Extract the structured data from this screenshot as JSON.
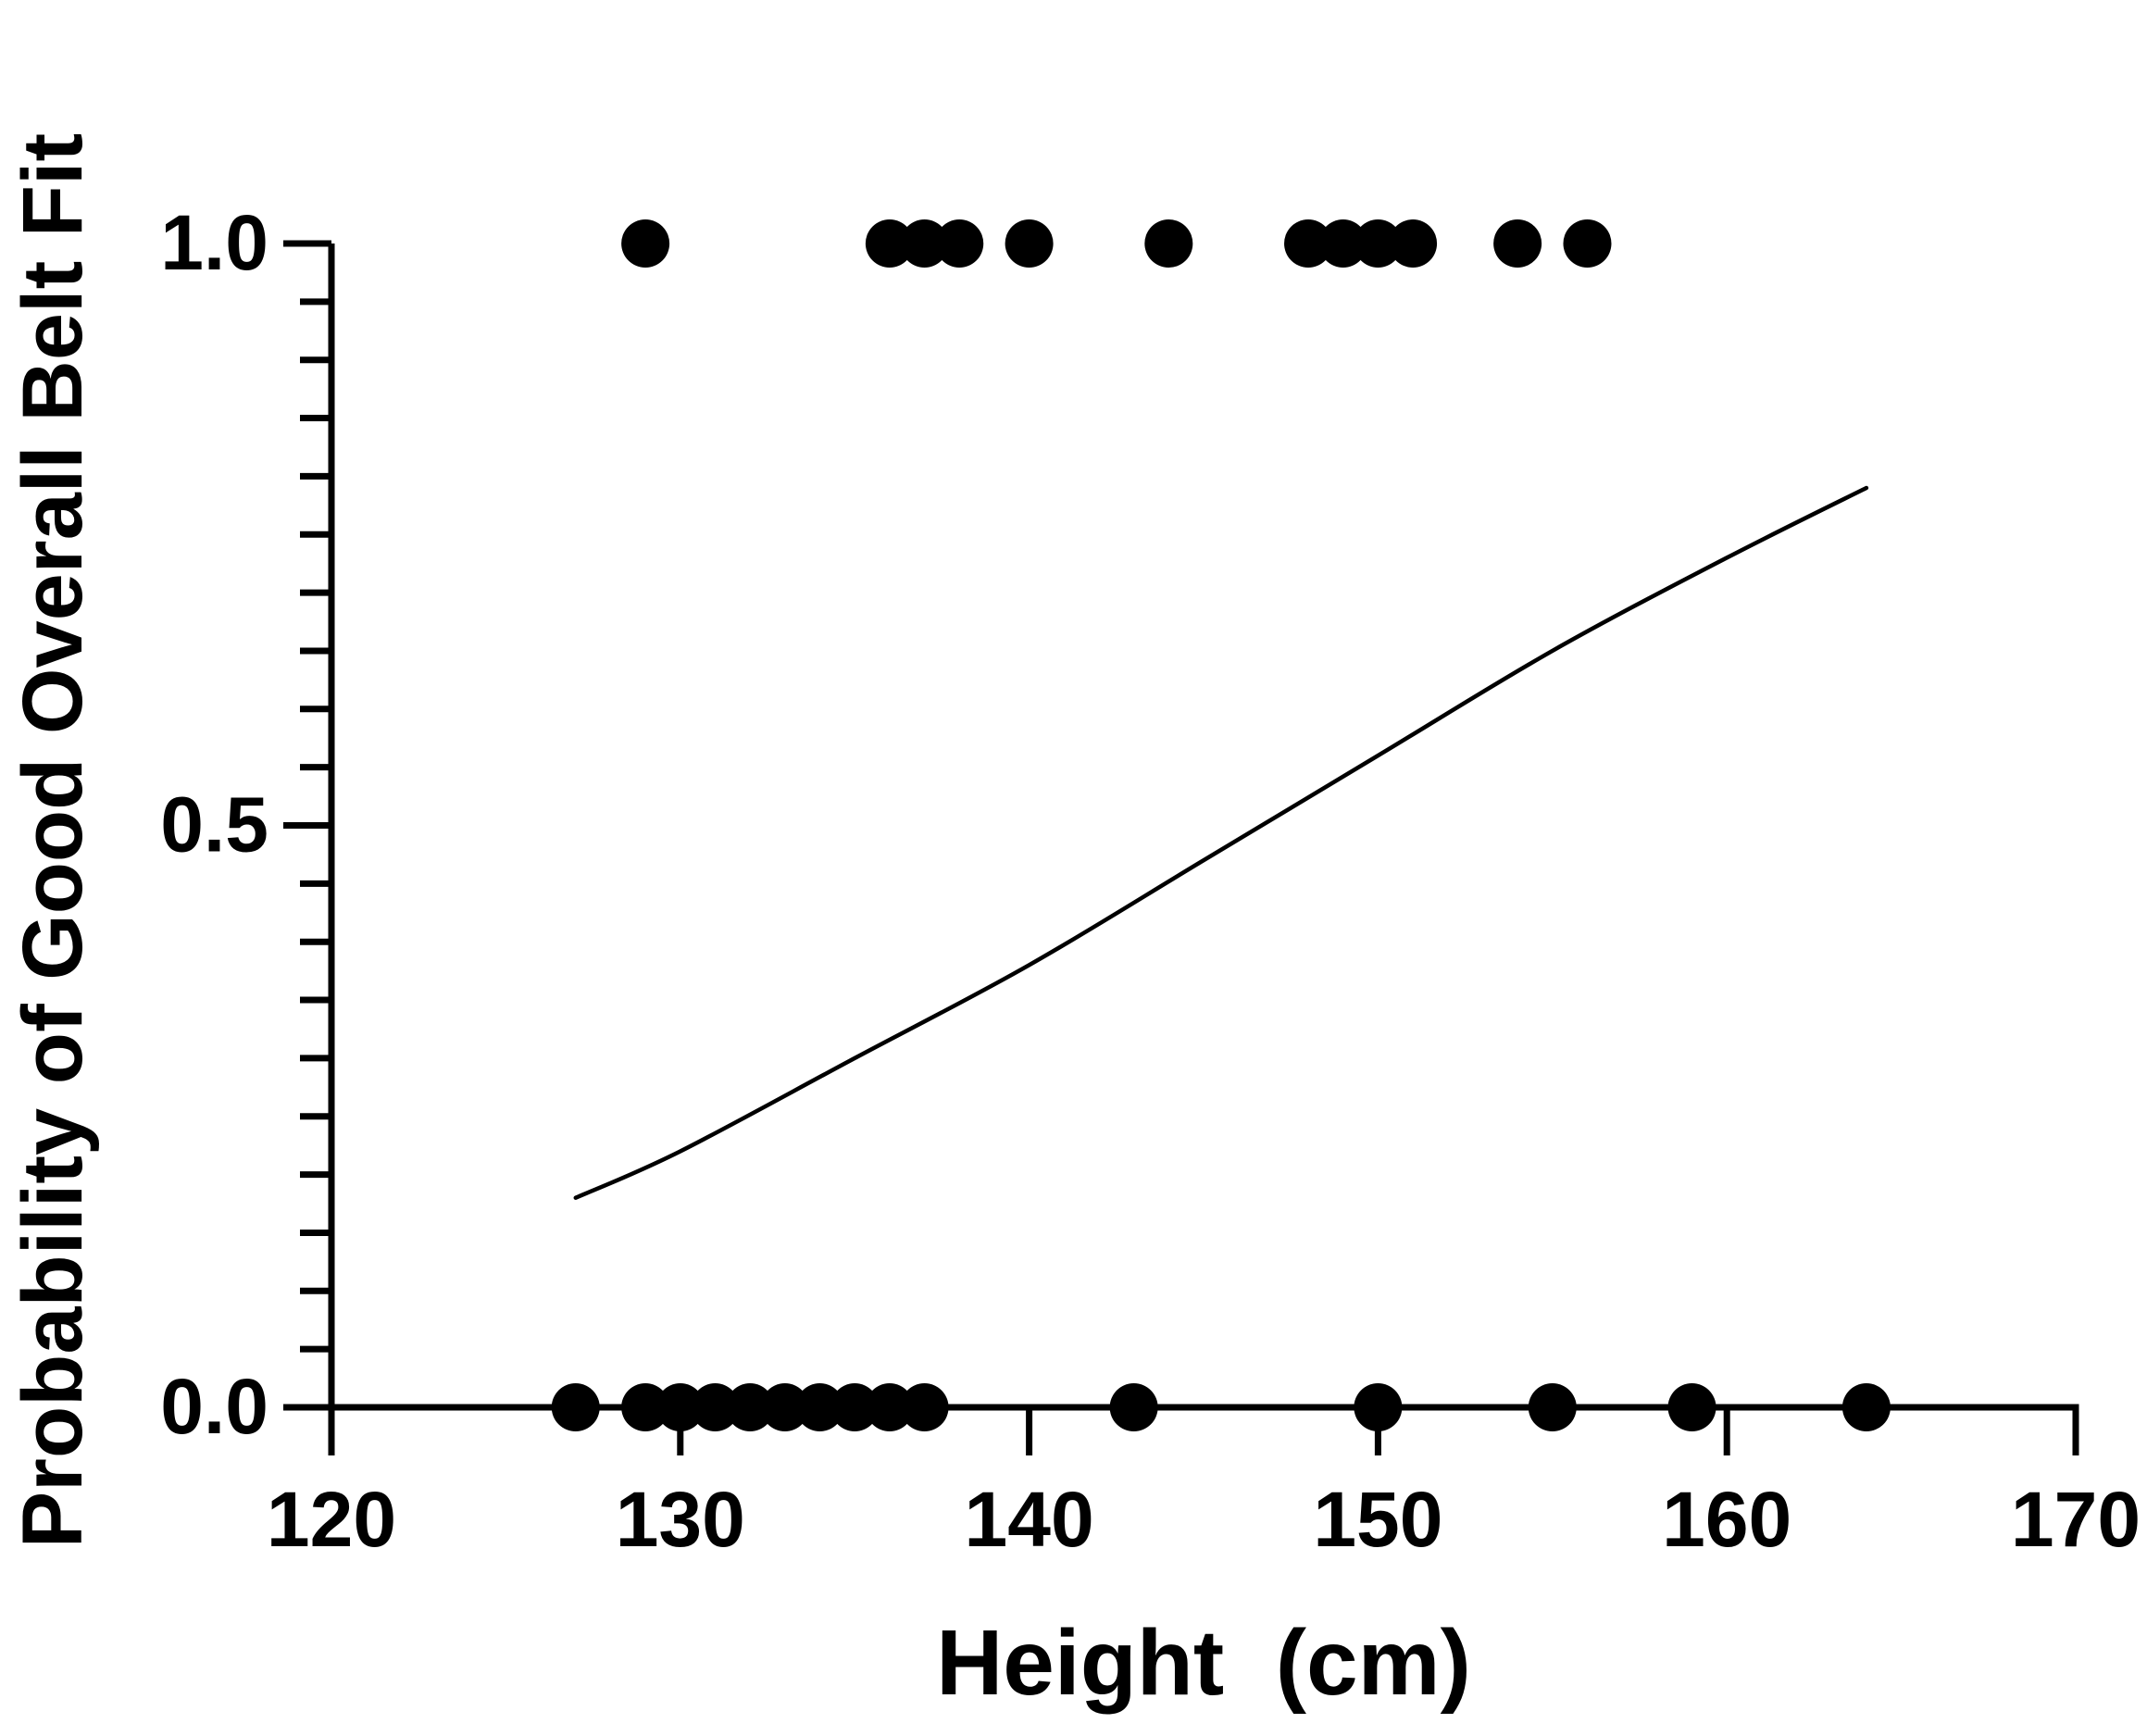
{
  "chart_data": {
    "type": "scatter",
    "title": "",
    "xlabel": "Height  (cm)",
    "ylabel": "Probability of Good Overall Belt Fit",
    "xlim": [
      120,
      170
    ],
    "ylim": [
      0,
      1
    ],
    "x_ticks": [
      120,
      130,
      140,
      150,
      160,
      170
    ],
    "x_tick_labels": [
      "120",
      "130",
      "140",
      "150",
      "160",
      "170"
    ],
    "y_major_ticks": [
      0,
      0.5,
      1
    ],
    "y_tick_labels": [
      "0.0",
      "0.5",
      "1.0"
    ],
    "y_minor_step": 0.05,
    "grid": false,
    "legend": "none",
    "colors": {
      "points": "#000000",
      "curve": "#000000",
      "axes": "#000000"
    },
    "series": [
      {
        "kind": "points",
        "x": [
          129,
          136,
          137,
          138,
          140,
          144,
          148,
          149,
          150,
          151,
          154,
          156
        ],
        "y": [
          1,
          1,
          1,
          1,
          1,
          1,
          1,
          1,
          1,
          1,
          1,
          1
        ]
      },
      {
        "kind": "points",
        "x": [
          127,
          129,
          130,
          131,
          132,
          133,
          134,
          135,
          136,
          137,
          143,
          150,
          155,
          159,
          164
        ],
        "y": [
          0,
          0,
          0,
          0,
          0,
          0,
          0,
          0,
          0,
          0,
          0,
          0,
          0,
          0,
          0
        ]
      },
      {
        "kind": "fitted-logistic-curve",
        "x": [
          127,
          130,
          135,
          140,
          145,
          150,
          155,
          160,
          164
        ],
        "y": [
          0.18,
          0.22,
          0.3,
          0.38,
          0.47,
          0.56,
          0.65,
          0.73,
          0.79
        ]
      }
    ]
  }
}
